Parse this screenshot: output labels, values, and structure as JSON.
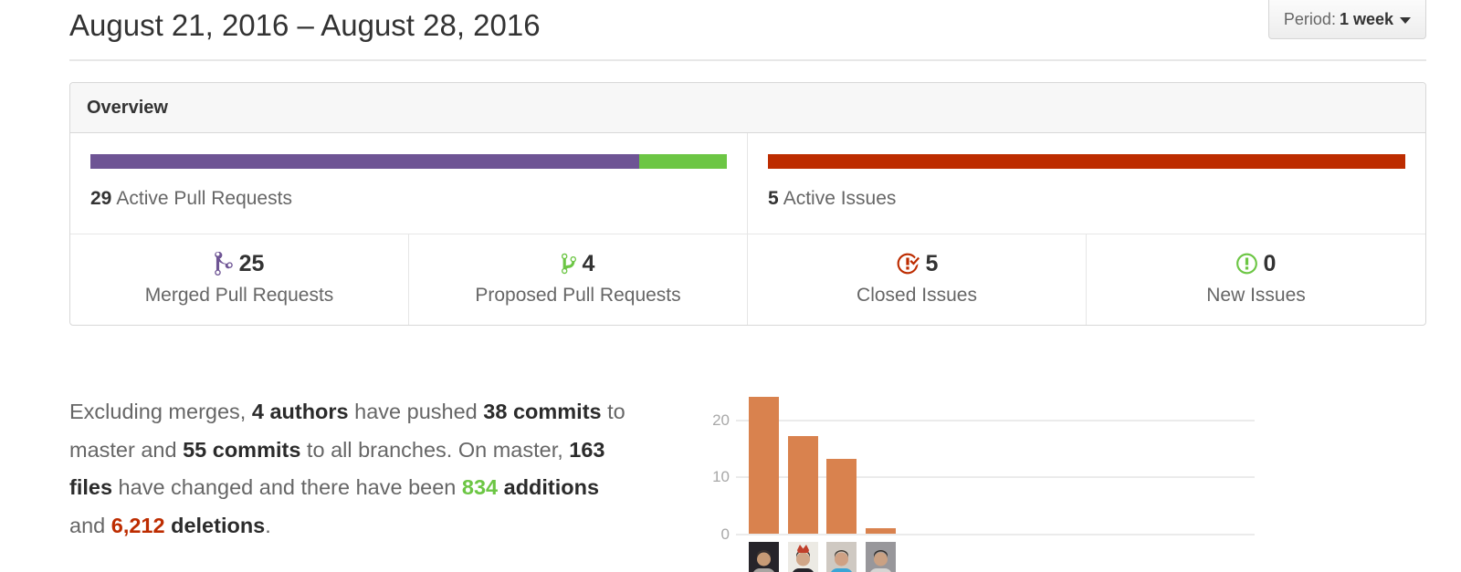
{
  "page": {
    "title": "August 21, 2016 – August 28, 2016",
    "period_button": {
      "label": "Period:",
      "value": "1 week"
    }
  },
  "overview": {
    "header": "Overview",
    "pull_requests": {
      "active_count": "29",
      "active_label": "Active Pull Requests",
      "merged_count": 25,
      "proposed_count": 4,
      "merged_color": "#6e5494",
      "proposed_color": "#6cc644"
    },
    "issues": {
      "active_count": "5",
      "active_label": "Active Issues",
      "closed_count": 5,
      "new_count": 0,
      "closed_color": "#bd2c00",
      "new_color": "#6cc644"
    },
    "stats": [
      {
        "icon": "git-merge-icon",
        "count": "25",
        "label": "Merged Pull Requests",
        "color": "#6e5494"
      },
      {
        "icon": "git-branch-icon",
        "count": "4",
        "label": "Proposed Pull Requests",
        "color": "#6cc644"
      },
      {
        "icon": "issue-closed-icon",
        "count": "5",
        "label": "Closed Issues",
        "color": "#bd2c00"
      },
      {
        "icon": "issue-opened-icon",
        "count": "0",
        "label": "New Issues",
        "color": "#6cc644"
      }
    ]
  },
  "summary": {
    "segments": [
      {
        "text": "Excluding merges, ",
        "style": "normal"
      },
      {
        "text": "4 authors",
        "style": "bold"
      },
      {
        "text": " have pushed ",
        "style": "normal"
      },
      {
        "text": "38 commits",
        "style": "bold"
      },
      {
        "text": " to",
        "style": "normal"
      },
      {
        "break": true
      },
      {
        "text": "master and ",
        "style": "normal"
      },
      {
        "text": "55 commits",
        "style": "bold"
      },
      {
        "text": " to all branches. On master, ",
        "style": "normal"
      },
      {
        "text": "163",
        "style": "bold"
      },
      {
        "break": true
      },
      {
        "text": "files",
        "style": "bold"
      },
      {
        "text": " have changed and there have been ",
        "style": "normal"
      },
      {
        "text": "834",
        "style": "additions"
      },
      {
        "text": " ",
        "style": "normal"
      },
      {
        "text": "additions",
        "style": "bold"
      },
      {
        "break": true
      },
      {
        "text": "and ",
        "style": "normal"
      },
      {
        "text": "6,212",
        "style": "deletions"
      },
      {
        "text": " ",
        "style": "normal"
      },
      {
        "text": "deletions",
        "style": "bold"
      },
      {
        "text": ".",
        "style": "normal"
      }
    ]
  },
  "chart_data": {
    "type": "bar",
    "description": "Commits per author this period; x labels are author avatars (no names shown)",
    "values": [
      24,
      17,
      13,
      1
    ],
    "yticks": [
      0,
      10,
      20
    ],
    "ylim": [
      0,
      24
    ],
    "bar_color": "#d9824e",
    "grid": true,
    "legend_position": "none",
    "avatars": [
      {
        "bg": "#26242a",
        "shirt": "#a9a5a2",
        "skin": "#c79b76",
        "hair": "#3a332f",
        "hat": null
      },
      {
        "bg": "#eceae4",
        "shirt": "#26242b",
        "skin": "#d0a688",
        "hair": "#2e2a26",
        "hat": "#c03f2b"
      },
      {
        "bg": "#cfc9c2",
        "shirt": "#3aa5d6",
        "skin": "#cfa184",
        "hair": "#423a32",
        "hat": null
      },
      {
        "bg": "#98979b",
        "shirt": "#d6d5d3",
        "skin": "#caa183",
        "hair": "#2f2b28",
        "hat": null
      }
    ]
  }
}
